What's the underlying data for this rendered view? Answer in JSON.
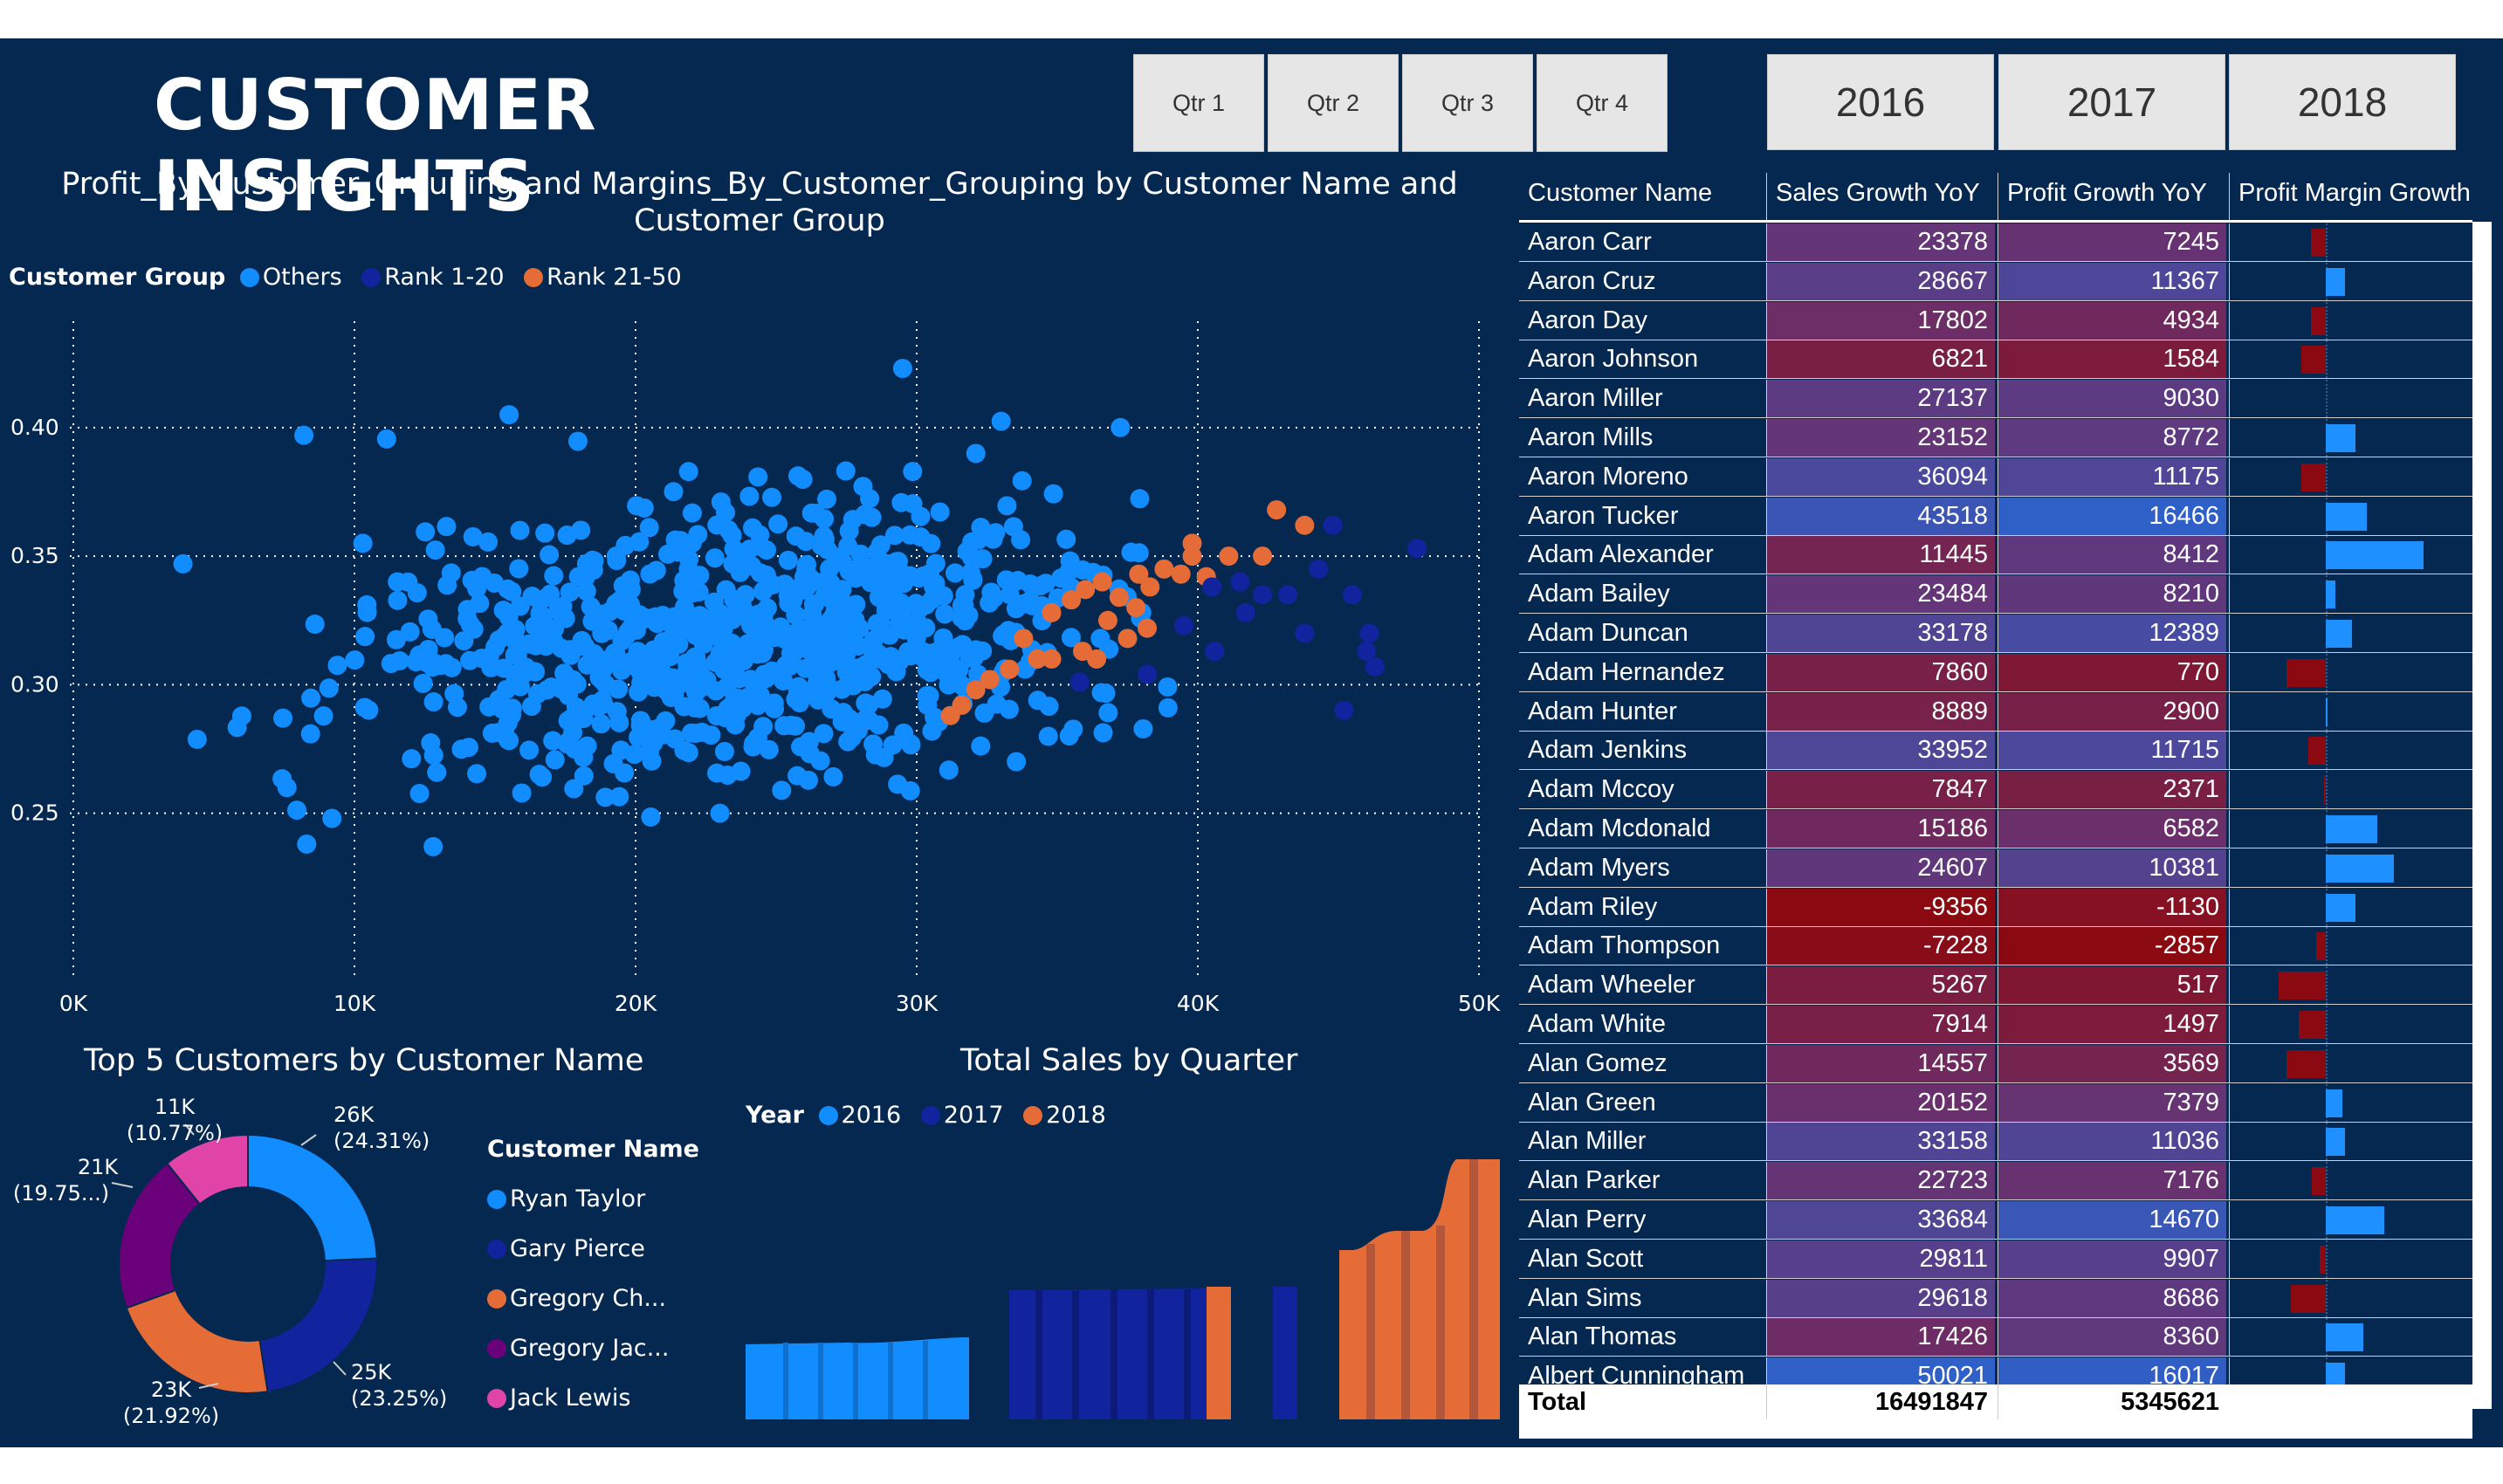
{
  "title": "CUSTOMER INSIGHTS",
  "quarters": [
    "Qtr 1",
    "Qtr 2",
    "Qtr 3",
    "Qtr 4"
  ],
  "years": [
    "2016",
    "2017",
    "2018"
  ],
  "colors": {
    "background": "#042850",
    "others": "#118DFF",
    "rank1_20": "#12239E",
    "rank21_50": "#E66C37",
    "purple": "#6B007B",
    "pink": "#E044A7",
    "negative": "#8B0A12"
  },
  "scatter": {
    "title": "Profit_By_Customer_Grouping and Margins_By_Customer_Grouping by Customer Name and Customer Group",
    "legend_label": "Customer Group",
    "legend_items": [
      "Others",
      "Rank 1-20",
      "Rank 21-50"
    ],
    "x_ticks": [
      "0K",
      "10K",
      "20K",
      "30K",
      "40K",
      "50K"
    ],
    "y_ticks": [
      "0.25",
      "0.30",
      "0.35",
      "0.40"
    ]
  },
  "donut": {
    "title": "Top 5 Customers by Customer Name",
    "legend_label": "Customer Name",
    "names": [
      "Ryan Taylor",
      "Gary Pierce",
      "Gregory Ch...",
      "Gregory Jac...",
      "Jack Lewis"
    ],
    "label_values": [
      "26K",
      "25K",
      "23K",
      "21K",
      "11K"
    ],
    "label_pcts": [
      "(24.31%)",
      "(23.25%)",
      "(21.92%)",
      "(19.75...)",
      "(10.77%)"
    ]
  },
  "quarter_chart": {
    "title": "Total Sales by Quarter",
    "legend_label": "Year",
    "legend_items": [
      "2016",
      "2017",
      "2018"
    ]
  },
  "table": {
    "headers": [
      "Customer Name",
      "Sales Growth YoY",
      "Profit Growth  YoY",
      "Profit Margin Growth"
    ],
    "rows": [
      {
        "name": "Aaron Carr",
        "sales": "23378",
        "profit": "7245",
        "margin": -0.15
      },
      {
        "name": "Aaron Cruz",
        "sales": "28667",
        "profit": "11367",
        "margin": 0.2
      },
      {
        "name": "Aaron Day",
        "sales": "17802",
        "profit": "4934",
        "margin": -0.15
      },
      {
        "name": "Aaron Johnson",
        "sales": "6821",
        "profit": "1584",
        "margin": -0.25
      },
      {
        "name": "Aaron Miller",
        "sales": "27137",
        "profit": "9030",
        "margin": 0.0
      },
      {
        "name": "Aaron Mills",
        "sales": "23152",
        "profit": "8772",
        "margin": 0.3
      },
      {
        "name": "Aaron Moreno",
        "sales": "36094",
        "profit": "11175",
        "margin": -0.25
      },
      {
        "name": "Aaron Tucker",
        "sales": "43518",
        "profit": "16466",
        "margin": 0.42
      },
      {
        "name": "Adam Alexander",
        "sales": "11445",
        "profit": "8412",
        "margin": 1.0
      },
      {
        "name": "Adam Bailey",
        "sales": "23484",
        "profit": "8210",
        "margin": 0.1
      },
      {
        "name": "Adam Duncan",
        "sales": "33178",
        "profit": "12389",
        "margin": 0.27
      },
      {
        "name": "Adam Hernandez",
        "sales": "7860",
        "profit": "770",
        "margin": -0.4
      },
      {
        "name": "Adam Hunter",
        "sales": "8889",
        "profit": "2900",
        "margin": 0.02
      },
      {
        "name": "Adam Jenkins",
        "sales": "33952",
        "profit": "11715",
        "margin": -0.18
      },
      {
        "name": "Adam Mccoy",
        "sales": "7847",
        "profit": "2371",
        "margin": -0.02
      },
      {
        "name": "Adam Mcdonald",
        "sales": "15186",
        "profit": "6582",
        "margin": 0.53
      },
      {
        "name": "Adam Myers",
        "sales": "24607",
        "profit": "10381",
        "margin": 0.7
      },
      {
        "name": "Adam Riley",
        "sales": "-9356",
        "profit": "-1130",
        "margin": 0.3
      },
      {
        "name": "Adam Thompson",
        "sales": "-7228",
        "profit": "-2857",
        "margin": -0.1
      },
      {
        "name": "Adam Wheeler",
        "sales": "5267",
        "profit": "517",
        "margin": -0.48
      },
      {
        "name": "Adam White",
        "sales": "7914",
        "profit": "1497",
        "margin": -0.28
      },
      {
        "name": "Alan Gomez",
        "sales": "14557",
        "profit": "3569",
        "margin": -0.4
      },
      {
        "name": "Alan Green",
        "sales": "20152",
        "profit": "7379",
        "margin": 0.17
      },
      {
        "name": "Alan Miller",
        "sales": "33158",
        "profit": "11036",
        "margin": 0.2
      },
      {
        "name": "Alan Parker",
        "sales": "22723",
        "profit": "7176",
        "margin": -0.14
      },
      {
        "name": "Alan Perry",
        "sales": "33684",
        "profit": "14670",
        "margin": 0.6
      },
      {
        "name": "Alan Scott",
        "sales": "29811",
        "profit": "9907",
        "margin": -0.06
      },
      {
        "name": "Alan Sims",
        "sales": "29618",
        "profit": "8686",
        "margin": -0.36
      },
      {
        "name": "Alan Thomas",
        "sales": "17426",
        "profit": "8360",
        "margin": 0.38
      },
      {
        "name": "Albert Cunningham",
        "sales": "50021",
        "profit": "16017",
        "margin": 0.2
      }
    ],
    "total_label": "Total",
    "total_sales": "16491847",
    "total_profit": "5345621"
  }
}
